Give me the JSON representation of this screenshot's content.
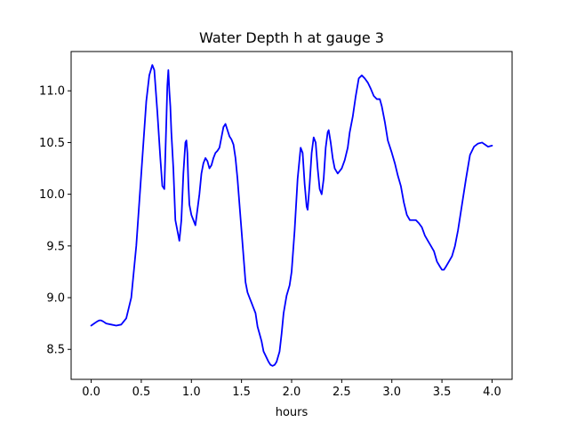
{
  "chart_data": {
    "type": "line",
    "title": "Water Depth h at gauge 3",
    "xlabel": "hours",
    "ylabel": "",
    "xlim": [
      -0.2,
      4.2
    ],
    "ylim": [
      8.21,
      11.38
    ],
    "xticks": [
      0.0,
      0.5,
      1.0,
      1.5,
      2.0,
      2.5,
      3.0,
      3.5,
      4.0
    ],
    "xtick_labels": [
      "0.0",
      "0.5",
      "1.0",
      "1.5",
      "2.0",
      "2.5",
      "3.0",
      "3.5",
      "4.0"
    ],
    "yticks": [
      8.5,
      9.0,
      9.5,
      10.0,
      10.5,
      11.0
    ],
    "ytick_labels": [
      "8.5",
      "9.0",
      "9.5",
      "10.0",
      "10.5",
      "11.0"
    ],
    "grid": false,
    "series": [
      {
        "color": "#0000ff",
        "points": [
          [
            0.0,
            8.73
          ],
          [
            0.03,
            8.75
          ],
          [
            0.06,
            8.77
          ],
          [
            0.08,
            8.78
          ],
          [
            0.1,
            8.78
          ],
          [
            0.12,
            8.77
          ],
          [
            0.15,
            8.75
          ],
          [
            0.2,
            8.74
          ],
          [
            0.25,
            8.73
          ],
          [
            0.3,
            8.74
          ],
          [
            0.35,
            8.8
          ],
          [
            0.4,
            9.0
          ],
          [
            0.45,
            9.5
          ],
          [
            0.5,
            10.2
          ],
          [
            0.55,
            10.9
          ],
          [
            0.58,
            11.15
          ],
          [
            0.61,
            11.25
          ],
          [
            0.63,
            11.2
          ],
          [
            0.66,
            10.8
          ],
          [
            0.69,
            10.35
          ],
          [
            0.71,
            10.08
          ],
          [
            0.73,
            10.05
          ],
          [
            0.75,
            10.7
          ],
          [
            0.76,
            11.05
          ],
          [
            0.77,
            11.2
          ],
          [
            0.78,
            11.0
          ],
          [
            0.79,
            10.85
          ],
          [
            0.8,
            10.6
          ],
          [
            0.82,
            10.25
          ],
          [
            0.84,
            9.75
          ],
          [
            0.86,
            9.65
          ],
          [
            0.88,
            9.55
          ],
          [
            0.9,
            9.75
          ],
          [
            0.92,
            10.2
          ],
          [
            0.94,
            10.5
          ],
          [
            0.95,
            10.52
          ],
          [
            0.96,
            10.4
          ],
          [
            0.97,
            10.1
          ],
          [
            0.98,
            9.9
          ],
          [
            1.0,
            9.8
          ],
          [
            1.02,
            9.75
          ],
          [
            1.04,
            9.7
          ],
          [
            1.06,
            9.85
          ],
          [
            1.08,
            10.0
          ],
          [
            1.1,
            10.2
          ],
          [
            1.12,
            10.3
          ],
          [
            1.14,
            10.35
          ],
          [
            1.16,
            10.32
          ],
          [
            1.18,
            10.25
          ],
          [
            1.2,
            10.28
          ],
          [
            1.22,
            10.35
          ],
          [
            1.24,
            10.4
          ],
          [
            1.26,
            10.42
          ],
          [
            1.28,
            10.45
          ],
          [
            1.3,
            10.55
          ],
          [
            1.32,
            10.65
          ],
          [
            1.34,
            10.68
          ],
          [
            1.36,
            10.62
          ],
          [
            1.38,
            10.56
          ],
          [
            1.4,
            10.53
          ],
          [
            1.42,
            10.48
          ],
          [
            1.44,
            10.35
          ],
          [
            1.46,
            10.15
          ],
          [
            1.48,
            9.9
          ],
          [
            1.5,
            9.65
          ],
          [
            1.52,
            9.4
          ],
          [
            1.54,
            9.15
          ],
          [
            1.56,
            9.05
          ],
          [
            1.58,
            9.0
          ],
          [
            1.6,
            8.95
          ],
          [
            1.62,
            8.9
          ],
          [
            1.64,
            8.85
          ],
          [
            1.66,
            8.72
          ],
          [
            1.68,
            8.65
          ],
          [
            1.7,
            8.58
          ],
          [
            1.72,
            8.48
          ],
          [
            1.75,
            8.42
          ],
          [
            1.77,
            8.38
          ],
          [
            1.79,
            8.35
          ],
          [
            1.81,
            8.34
          ],
          [
            1.83,
            8.35
          ],
          [
            1.85,
            8.38
          ],
          [
            1.88,
            8.48
          ],
          [
            1.9,
            8.65
          ],
          [
            1.92,
            8.85
          ],
          [
            1.95,
            9.02
          ],
          [
            1.98,
            9.12
          ],
          [
            2.0,
            9.25
          ],
          [
            2.03,
            9.65
          ],
          [
            2.06,
            10.15
          ],
          [
            2.09,
            10.45
          ],
          [
            2.11,
            10.4
          ],
          [
            2.13,
            10.1
          ],
          [
            2.15,
            9.88
          ],
          [
            2.16,
            9.85
          ],
          [
            2.18,
            10.1
          ],
          [
            2.2,
            10.4
          ],
          [
            2.22,
            10.55
          ],
          [
            2.24,
            10.5
          ],
          [
            2.26,
            10.25
          ],
          [
            2.28,
            10.05
          ],
          [
            2.3,
            10.0
          ],
          [
            2.32,
            10.15
          ],
          [
            2.34,
            10.45
          ],
          [
            2.36,
            10.6
          ],
          [
            2.37,
            10.62
          ],
          [
            2.39,
            10.5
          ],
          [
            2.41,
            10.35
          ],
          [
            2.43,
            10.25
          ],
          [
            2.46,
            10.2
          ],
          [
            2.5,
            10.25
          ],
          [
            2.53,
            10.33
          ],
          [
            2.56,
            10.45
          ],
          [
            2.58,
            10.6
          ],
          [
            2.61,
            10.75
          ],
          [
            2.64,
            10.95
          ],
          [
            2.67,
            11.12
          ],
          [
            2.7,
            11.15
          ],
          [
            2.73,
            11.12
          ],
          [
            2.76,
            11.08
          ],
          [
            2.79,
            11.02
          ],
          [
            2.82,
            10.95
          ],
          [
            2.85,
            10.92
          ],
          [
            2.88,
            10.92
          ],
          [
            2.9,
            10.85
          ],
          [
            2.93,
            10.7
          ],
          [
            2.96,
            10.52
          ],
          [
            3.0,
            10.4
          ],
          [
            3.03,
            10.3
          ],
          [
            3.06,
            10.18
          ],
          [
            3.09,
            10.08
          ],
          [
            3.12,
            9.92
          ],
          [
            3.15,
            9.8
          ],
          [
            3.18,
            9.75
          ],
          [
            3.21,
            9.75
          ],
          [
            3.24,
            9.75
          ],
          [
            3.27,
            9.72
          ],
          [
            3.3,
            9.68
          ],
          [
            3.33,
            9.6
          ],
          [
            3.36,
            9.55
          ],
          [
            3.39,
            9.5
          ],
          [
            3.42,
            9.45
          ],
          [
            3.45,
            9.35
          ],
          [
            3.48,
            9.3
          ],
          [
            3.5,
            9.27
          ],
          [
            3.52,
            9.27
          ],
          [
            3.54,
            9.3
          ],
          [
            3.57,
            9.35
          ],
          [
            3.6,
            9.4
          ],
          [
            3.63,
            9.5
          ],
          [
            3.66,
            9.65
          ],
          [
            3.7,
            9.9
          ],
          [
            3.74,
            10.15
          ],
          [
            3.78,
            10.38
          ],
          [
            3.82,
            10.46
          ],
          [
            3.86,
            10.49
          ],
          [
            3.9,
            10.5
          ],
          [
            3.93,
            10.48
          ],
          [
            3.96,
            10.46
          ],
          [
            4.0,
            10.47
          ]
        ]
      }
    ]
  }
}
